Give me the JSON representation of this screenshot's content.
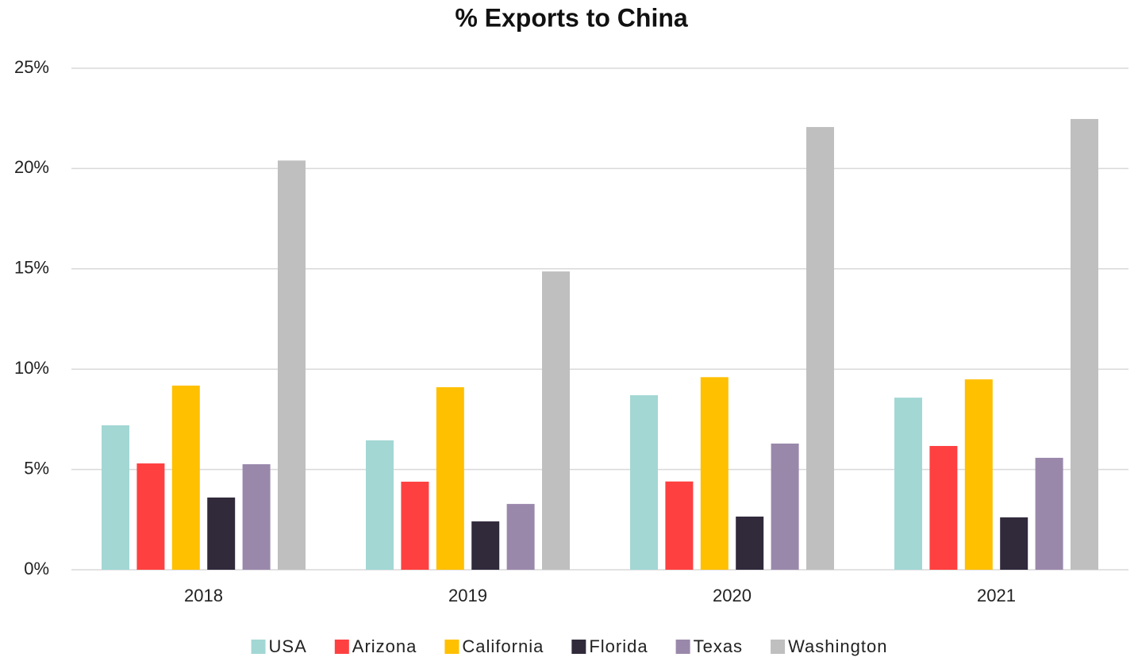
{
  "chart_data": {
    "type": "bar",
    "title": "% Exports to China",
    "categories": [
      "2018",
      "2019",
      "2020",
      "2021"
    ],
    "series": [
      {
        "name": "USA",
        "color": "#a2d7d4",
        "values": [
          7.2,
          6.45,
          8.7,
          8.58
        ]
      },
      {
        "name": "Arizona",
        "color": "#ff4040",
        "values": [
          5.3,
          4.39,
          4.4,
          6.17
        ]
      },
      {
        "name": "California",
        "color": "#ffc000",
        "values": [
          9.18,
          9.1,
          9.6,
          9.49
        ]
      },
      {
        "name": "Florida",
        "color": "#312a3b",
        "values": [
          3.6,
          2.41,
          2.65,
          2.61
        ]
      },
      {
        "name": "Texas",
        "color": "#9a88ab",
        "values": [
          5.26,
          3.28,
          6.29,
          5.58
        ]
      },
      {
        "name": "Washington",
        "color": "#bfbfbf",
        "values": [
          20.4,
          14.87,
          22.07,
          22.47
        ]
      }
    ],
    "ylim": [
      0,
      25
    ],
    "yticks": [
      {
        "value": 0,
        "label": "0%"
      },
      {
        "value": 5,
        "label": "5%"
      },
      {
        "value": 10,
        "label": "10%"
      },
      {
        "value": 15,
        "label": "15%"
      },
      {
        "value": 20,
        "label": "20%"
      },
      {
        "value": 25,
        "label": "25%"
      }
    ],
    "grid": true,
    "legend": "bottom"
  }
}
